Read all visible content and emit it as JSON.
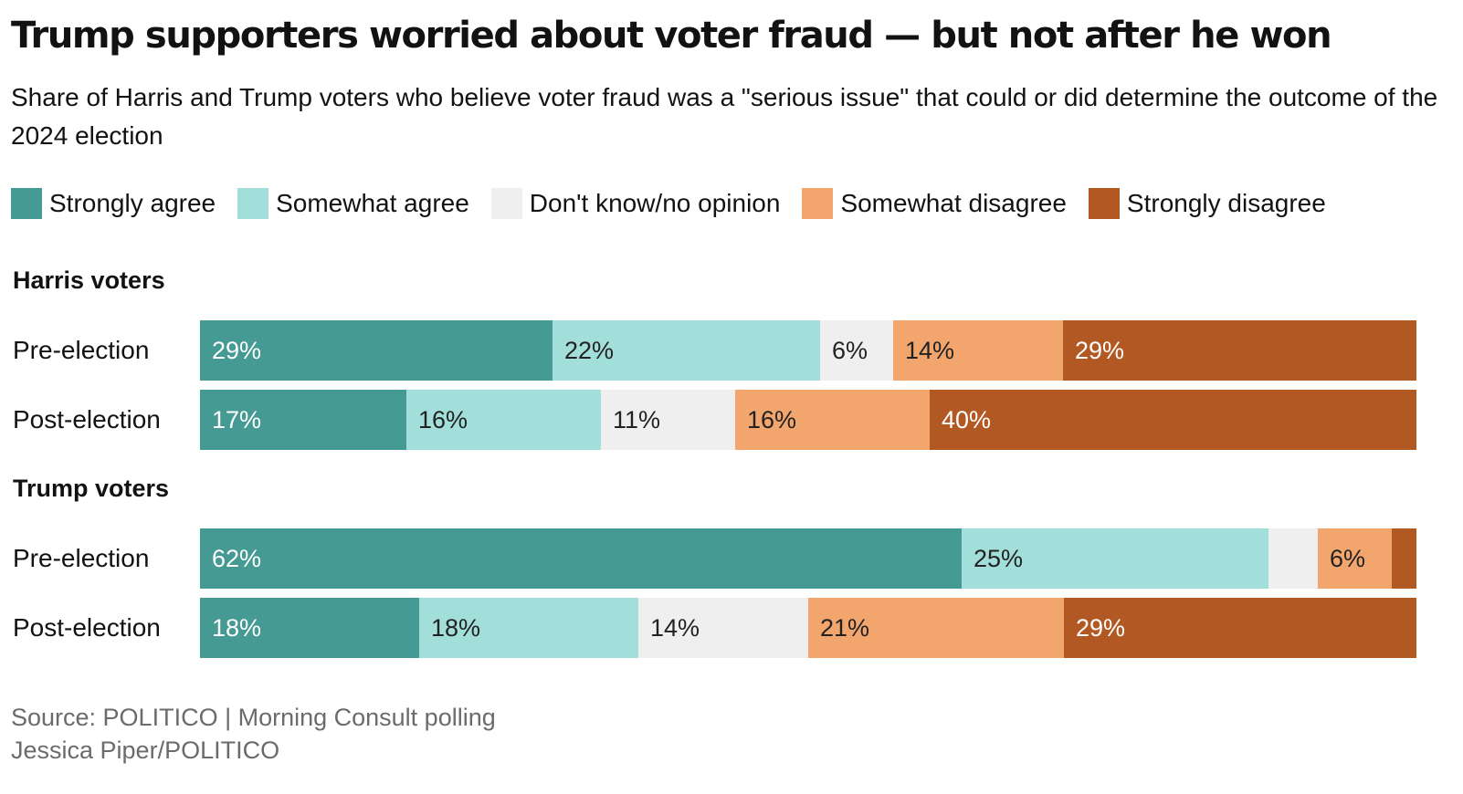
{
  "title": "Trump supporters worried about voter fraud — but not after he won",
  "subtitle": "Share of Harris and Trump voters who believe voter fraud was a \"serious issue\" that could or did determine the outcome of the 2024 election",
  "source_line1": "Source: POLITICO | Morning Consult polling",
  "source_line2": "Jessica Piper/POLITICO",
  "chart_data": {
    "type": "bar",
    "orientation": "horizontal",
    "stacked": true,
    "normalized": true,
    "title": "Trump supporters worried about voter fraud — but not after he won",
    "categories_legend": [
      {
        "name": "Strongly agree",
        "color": "#459a94",
        "text_color": "#ffffff"
      },
      {
        "name": "Somewhat agree",
        "color": "#a2dfda",
        "text_color": "#222222"
      },
      {
        "name": "Don't know/no opinion",
        "color": "#efefef",
        "text_color": "#222222"
      },
      {
        "name": "Somewhat disagree",
        "color": "#f2a66d",
        "text_color": "#222222"
      },
      {
        "name": "Strongly disagree",
        "color": "#b25822",
        "text_color": "#ffffff"
      }
    ],
    "groups": [
      {
        "name": "Harris voters",
        "rows": [
          {
            "label": "Pre-election",
            "values": [
              29,
              22,
              6,
              14,
              29
            ],
            "labels": [
              "29%",
              "22%",
              "6%",
              "14%",
              "29%"
            ]
          },
          {
            "label": "Post-election",
            "values": [
              17,
              16,
              11,
              16,
              40
            ],
            "labels": [
              "17%",
              "16%",
              "11%",
              "16%",
              "40%"
            ]
          }
        ]
      },
      {
        "name": "Trump voters",
        "rows": [
          {
            "label": "Pre-election",
            "values": [
              62,
              25,
              4,
              6,
              2
            ],
            "labels": [
              "62%",
              "25%",
              "",
              "6%",
              ""
            ]
          },
          {
            "label": "Post-election",
            "values": [
              18,
              18,
              14,
              21,
              29
            ],
            "labels": [
              "18%",
              "18%",
              "14%",
              "21%",
              "29%"
            ]
          }
        ]
      }
    ],
    "xlim": [
      0,
      100
    ],
    "xlabel": "",
    "ylabel": ""
  }
}
